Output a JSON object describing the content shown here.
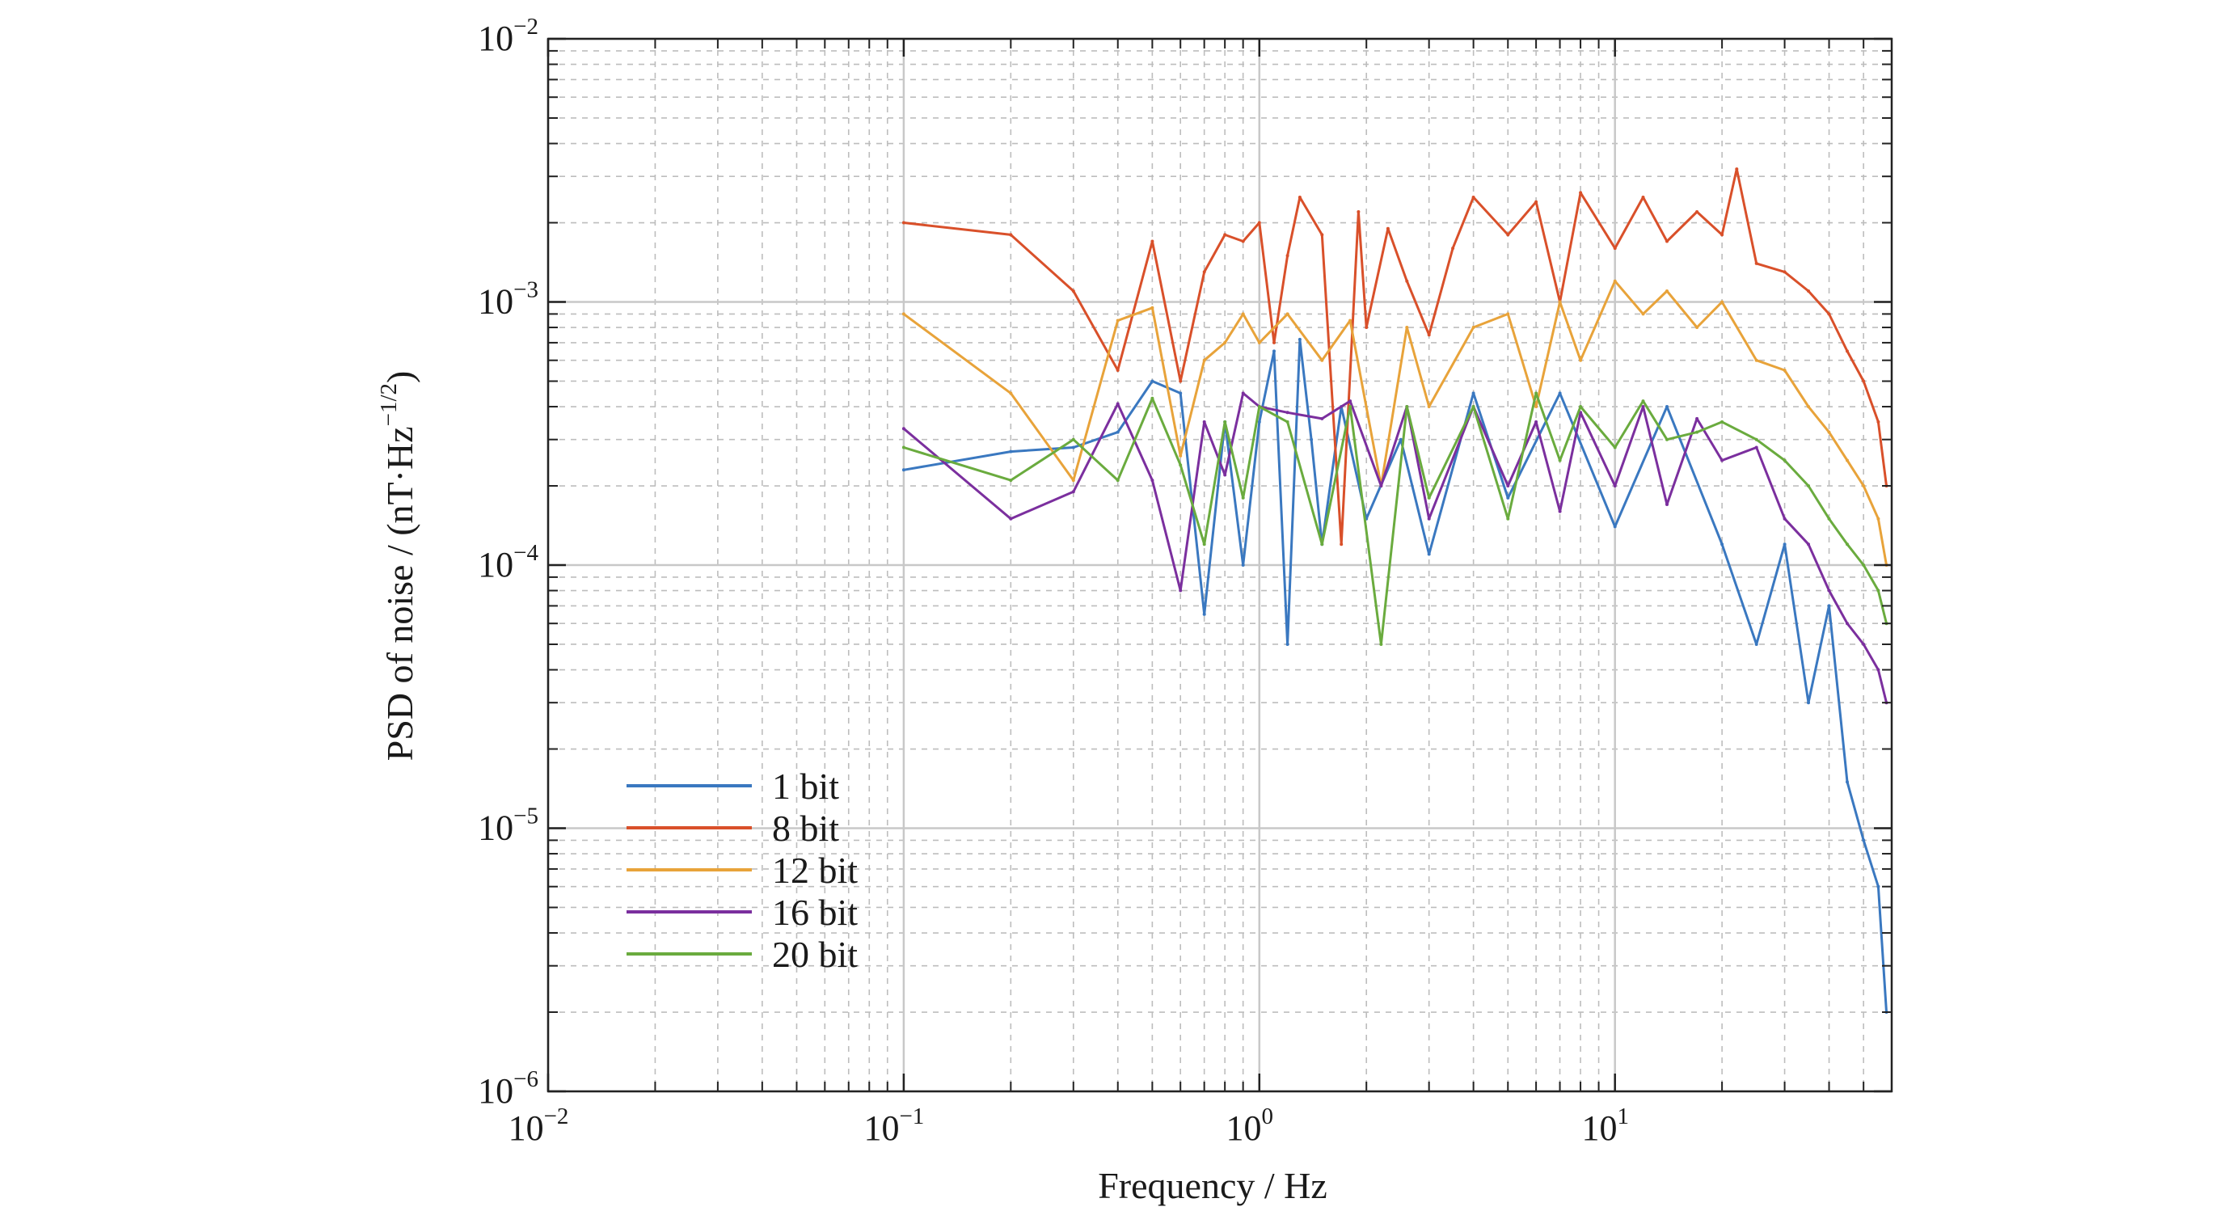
{
  "chart_data": {
    "type": "line",
    "xscale": "log",
    "yscale": "log",
    "xlabel": "Frequency / Hz",
    "ylabel": "PSD of noise / (nT·Hz",
    "ylabel_exponent": "−1/2",
    "ylabel_close": ")",
    "xlim": [
      0.01,
      60
    ],
    "ylim": [
      1e-06,
      0.01
    ],
    "grid": true,
    "legend_position": "lower-left",
    "x_ticks": [
      {
        "value": 0.01,
        "base": "10",
        "exp": "−2"
      },
      {
        "value": 0.1,
        "base": "10",
        "exp": "−1"
      },
      {
        "value": 1,
        "base": "10",
        "exp": "0"
      },
      {
        "value": 10,
        "base": "10",
        "exp": "1"
      }
    ],
    "y_ticks": [
      {
        "value": 0.01,
        "base": "10",
        "exp": "−2"
      },
      {
        "value": 0.001,
        "base": "10",
        "exp": "−3"
      },
      {
        "value": 0.0001,
        "base": "10",
        "exp": "−4"
      },
      {
        "value": 1e-05,
        "base": "10",
        "exp": "−5"
      },
      {
        "value": 1e-06,
        "base": "10",
        "exp": "−6"
      }
    ],
    "series": [
      {
        "name": "1 bit",
        "color": "#3a78c0",
        "x": [
          0.1,
          0.2,
          0.3,
          0.4,
          0.5,
          0.6,
          0.7,
          0.8,
          0.9,
          1.0,
          1.1,
          1.2,
          1.3,
          1.4,
          1.5,
          1.7,
          2.0,
          2.5,
          3,
          4,
          5,
          7,
          10,
          14,
          20,
          25,
          30,
          35,
          40,
          45,
          50,
          55,
          58
        ],
        "y": [
          0.00023,
          0.00027,
          0.00028,
          0.00032,
          0.0005,
          0.00045,
          6.5e-05,
          0.00035,
          0.0001,
          0.00035,
          0.00065,
          5e-05,
          0.00072,
          0.0003,
          0.00012,
          0.0004,
          0.00015,
          0.0003,
          0.00011,
          0.00045,
          0.00018,
          0.00045,
          0.00014,
          0.0004,
          0.00012,
          5e-05,
          0.00012,
          3e-05,
          7e-05,
          1.5e-05,
          9e-06,
          6e-06,
          2e-06
        ]
      },
      {
        "name": "8 bit",
        "color": "#d9502a",
        "x": [
          0.1,
          0.2,
          0.3,
          0.4,
          0.5,
          0.6,
          0.7,
          0.8,
          0.9,
          1.0,
          1.1,
          1.2,
          1.3,
          1.5,
          1.7,
          1.9,
          2.0,
          2.3,
          2.6,
          3,
          3.5,
          4,
          5,
          6,
          7,
          8,
          10,
          12,
          14,
          17,
          20,
          22,
          25,
          30,
          35,
          40,
          45,
          50,
          55,
          58
        ],
        "y": [
          0.002,
          0.0018,
          0.0011,
          0.00055,
          0.0017,
          0.0005,
          0.0013,
          0.0018,
          0.0017,
          0.002,
          0.0007,
          0.0015,
          0.0025,
          0.0018,
          0.00012,
          0.0022,
          0.0008,
          0.0019,
          0.0012,
          0.00075,
          0.0016,
          0.0025,
          0.0018,
          0.0024,
          0.001,
          0.0026,
          0.0016,
          0.0025,
          0.0017,
          0.0022,
          0.0018,
          0.0032,
          0.0014,
          0.0013,
          0.0011,
          0.0009,
          0.00065,
          0.0005,
          0.00035,
          0.0002
        ]
      },
      {
        "name": "12 bit",
        "color": "#e8a33a",
        "x": [
          0.1,
          0.2,
          0.3,
          0.4,
          0.5,
          0.6,
          0.7,
          0.8,
          0.9,
          1.0,
          1.2,
          1.5,
          1.8,
          2.2,
          2.6,
          3,
          4,
          5,
          6,
          7,
          8,
          10,
          12,
          14,
          17,
          20,
          25,
          30,
          35,
          40,
          45,
          50,
          55,
          58
        ],
        "y": [
          0.0009,
          0.00045,
          0.00021,
          0.00085,
          0.00095,
          0.00026,
          0.0006,
          0.0007,
          0.0009,
          0.0007,
          0.0009,
          0.0006,
          0.00085,
          0.0002,
          0.0008,
          0.0004,
          0.0008,
          0.0009,
          0.0004,
          0.001,
          0.0006,
          0.0012,
          0.0009,
          0.0011,
          0.0008,
          0.001,
          0.0006,
          0.00055,
          0.0004,
          0.00032,
          0.00025,
          0.0002,
          0.00015,
          0.0001
        ]
      },
      {
        "name": "16 bit",
        "color": "#7b2f9e",
        "x": [
          0.1,
          0.2,
          0.3,
          0.4,
          0.5,
          0.6,
          0.7,
          0.8,
          0.9,
          1.0,
          1.2,
          1.5,
          1.8,
          2.2,
          2.6,
          3,
          4,
          5,
          6,
          7,
          8,
          10,
          12,
          14,
          17,
          20,
          25,
          30,
          35,
          40,
          45,
          50,
          55,
          58
        ],
        "y": [
          0.00033,
          0.00015,
          0.00019,
          0.00041,
          0.00021,
          8e-05,
          0.00035,
          0.00022,
          0.00045,
          0.0004,
          0.00038,
          0.00036,
          0.00042,
          0.0002,
          0.0004,
          0.00015,
          0.0004,
          0.0002,
          0.00035,
          0.00016,
          0.00038,
          0.0002,
          0.0004,
          0.00017,
          0.00036,
          0.00025,
          0.00028,
          0.00015,
          0.00012,
          8e-05,
          6e-05,
          5e-05,
          4e-05,
          3e-05
        ]
      },
      {
        "name": "20 bit",
        "color": "#6aab3e",
        "x": [
          0.1,
          0.2,
          0.3,
          0.4,
          0.5,
          0.6,
          0.7,
          0.8,
          0.9,
          1.0,
          1.2,
          1.5,
          1.8,
          2.2,
          2.6,
          3,
          4,
          5,
          6,
          7,
          8,
          10,
          12,
          14,
          17,
          20,
          25,
          30,
          35,
          40,
          45,
          50,
          55,
          58
        ],
        "y": [
          0.00028,
          0.00021,
          0.0003,
          0.00021,
          0.00043,
          0.00024,
          0.00012,
          0.00035,
          0.00018,
          0.0004,
          0.00035,
          0.00012,
          0.0004,
          5e-05,
          0.0004,
          0.00018,
          0.0004,
          0.00015,
          0.00045,
          0.00025,
          0.0004,
          0.00028,
          0.00042,
          0.0003,
          0.00032,
          0.00035,
          0.0003,
          0.00025,
          0.0002,
          0.00015,
          0.00012,
          0.0001,
          8e-05,
          6e-05
        ]
      }
    ]
  }
}
